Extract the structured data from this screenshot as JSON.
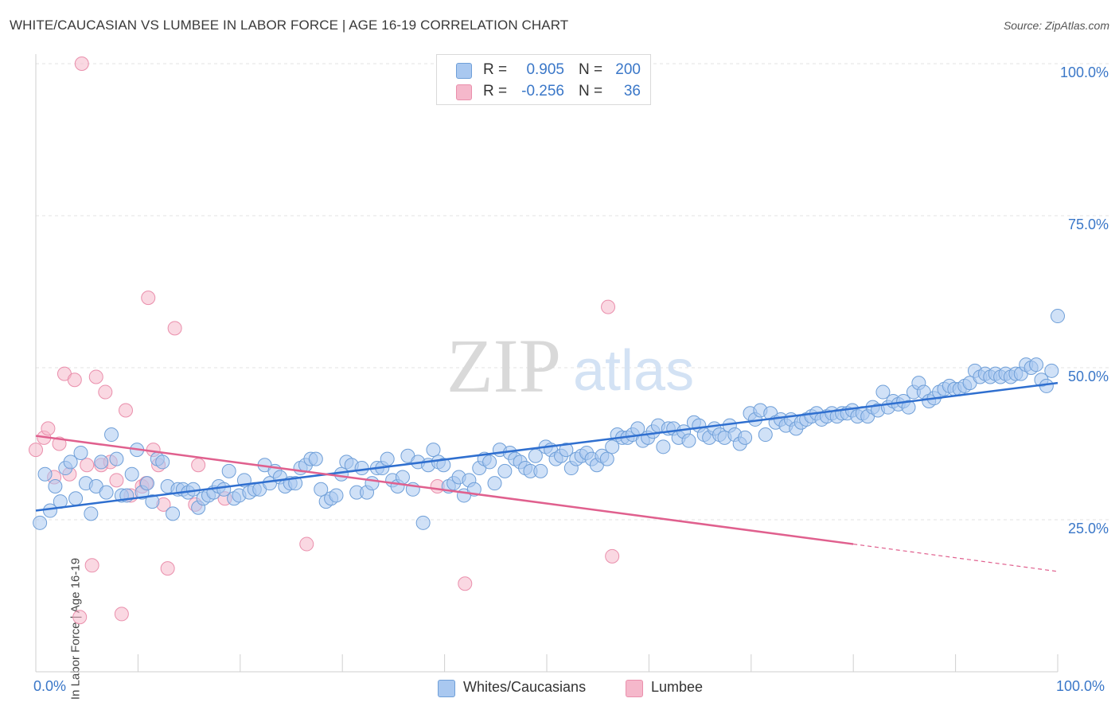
{
  "title": "WHITE/CAUCASIAN VS LUMBEE IN LABOR FORCE | AGE 16-19 CORRELATION CHART",
  "source": "Source: ZipAtlas.com",
  "watermark": {
    "zip": "ZIP",
    "atlas": "atlas"
  },
  "legend_top": [
    {
      "r_label": "R = ",
      "r_value": "0.905",
      "n_label": "N = ",
      "n_value": "200",
      "color": "#a9c8f0"
    },
    {
      "r_label": "R = ",
      "r_value": "-0.256",
      "n_label": "N = ",
      "n_value": "36",
      "color": "#f5b8cb"
    }
  ],
  "legend_bottom": [
    {
      "label": "Whites/Caucasians",
      "color": "#a9c8f0"
    },
    {
      "label": "Lumbee",
      "color": "#f5b8cb"
    }
  ],
  "x_tick_labels": {
    "left": "0.0%",
    "right": "100.0%"
  },
  "chart_data": {
    "type": "scatter",
    "title": "WHITE/CAUCASIAN VS LUMBEE IN LABOR FORCE | AGE 16-19 CORRELATION CHART",
    "xlabel": "",
    "ylabel": "In Labor Force | Age 16-19",
    "xlim": [
      0,
      100
    ],
    "ylim": [
      0,
      102
    ],
    "y_ticks": [
      {
        "value": 25,
        "label": "25.0%"
      },
      {
        "value": 50,
        "label": "50.0%"
      },
      {
        "value": 75,
        "label": "75.0%"
      },
      {
        "value": 100,
        "label": "100.0%"
      }
    ],
    "grid": true,
    "legend_position": "top-center",
    "colors": {
      "white_fill": "#a9c8f0",
      "white_stroke": "#6f9fd8",
      "white_line": "#2f6fcf",
      "lumbee_fill": "#f5b8cb",
      "lumbee_stroke": "#ea8fac",
      "lumbee_line": "#e0608e"
    },
    "series": [
      {
        "name": "Whites/Caucasians",
        "trend": {
          "x0": 0,
          "y0": 26.5,
          "x1": 100,
          "y1": 47.5
        },
        "points": [
          [
            0.4,
            24.5
          ],
          [
            0.9,
            32.5
          ],
          [
            1.4,
            26.5
          ],
          [
            1.9,
            30.5
          ],
          [
            2.4,
            28
          ],
          [
            2.9,
            33.5
          ],
          [
            3.4,
            34.5
          ],
          [
            3.9,
            28.5
          ],
          [
            4.4,
            36
          ],
          [
            4.9,
            31
          ],
          [
            5.4,
            26
          ],
          [
            5.9,
            30.5
          ],
          [
            6.4,
            34.5
          ],
          [
            6.9,
            29.5
          ],
          [
            7.4,
            39
          ],
          [
            7.9,
            35
          ],
          [
            8.4,
            29
          ],
          [
            8.9,
            29
          ],
          [
            9.4,
            32.5
          ],
          [
            9.9,
            36.5
          ],
          [
            10.4,
            29.5
          ],
          [
            10.9,
            31
          ],
          [
            11.4,
            28
          ],
          [
            11.9,
            35
          ],
          [
            12.4,
            34.5
          ],
          [
            12.9,
            30.5
          ],
          [
            13.4,
            26
          ],
          [
            13.9,
            30
          ],
          [
            14.4,
            30
          ],
          [
            14.9,
            29.5
          ],
          [
            15.4,
            30
          ],
          [
            15.9,
            27
          ],
          [
            16.4,
            28.5
          ],
          [
            16.9,
            29
          ],
          [
            17.4,
            29.5
          ],
          [
            17.9,
            30.5
          ],
          [
            18.4,
            30
          ],
          [
            18.9,
            33
          ],
          [
            19.4,
            28.5
          ],
          [
            19.9,
            29
          ],
          [
            20.4,
            31.5
          ],
          [
            20.9,
            29.5
          ],
          [
            21.4,
            30
          ],
          [
            21.9,
            30
          ],
          [
            22.4,
            34
          ],
          [
            22.9,
            31
          ],
          [
            23.4,
            33
          ],
          [
            23.9,
            32
          ],
          [
            24.4,
            30.5
          ],
          [
            24.9,
            31
          ],
          [
            25.4,
            31
          ],
          [
            25.9,
            33.5
          ],
          [
            26.4,
            34
          ],
          [
            26.9,
            35
          ],
          [
            27.4,
            35
          ],
          [
            27.9,
            30
          ],
          [
            28.4,
            28
          ],
          [
            28.9,
            28.5
          ],
          [
            29.4,
            29
          ],
          [
            29.9,
            32.5
          ],
          [
            30.4,
            34.5
          ],
          [
            30.9,
            34
          ],
          [
            31.4,
            29.5
          ],
          [
            31.9,
            33.5
          ],
          [
            32.4,
            29.5
          ],
          [
            32.9,
            31
          ],
          [
            33.4,
            33.5
          ],
          [
            33.9,
            33.5
          ],
          [
            34.4,
            35
          ],
          [
            34.9,
            31.5
          ],
          [
            35.4,
            30.5
          ],
          [
            35.9,
            32
          ],
          [
            36.4,
            35.5
          ],
          [
            36.9,
            30
          ],
          [
            37.4,
            34.5
          ],
          [
            37.9,
            24.5
          ],
          [
            38.4,
            34
          ],
          [
            38.9,
            36.5
          ],
          [
            39.4,
            34.5
          ],
          [
            39.9,
            34
          ],
          [
            40.4,
            30.5
          ],
          [
            40.9,
            31
          ],
          [
            41.4,
            32
          ],
          [
            41.9,
            29
          ],
          [
            42.4,
            31.5
          ],
          [
            42.9,
            30
          ],
          [
            43.4,
            33.5
          ],
          [
            43.9,
            35
          ],
          [
            44.4,
            34.5
          ],
          [
            44.9,
            31
          ],
          [
            45.4,
            36.5
          ],
          [
            45.9,
            33
          ],
          [
            46.4,
            36
          ],
          [
            46.9,
            35
          ],
          [
            47.4,
            34.5
          ],
          [
            47.9,
            33.5
          ],
          [
            48.4,
            33
          ],
          [
            48.9,
            35.5
          ],
          [
            49.4,
            33
          ],
          [
            49.9,
            37
          ],
          [
            50.4,
            36.5
          ],
          [
            50.9,
            35
          ],
          [
            51.4,
            35.5
          ],
          [
            51.9,
            36.5
          ],
          [
            52.4,
            33.5
          ],
          [
            52.9,
            35
          ],
          [
            53.4,
            35.5
          ],
          [
            53.9,
            36
          ],
          [
            54.4,
            35
          ],
          [
            54.9,
            34
          ],
          [
            55.4,
            35.5
          ],
          [
            55.9,
            35
          ],
          [
            56.4,
            37
          ],
          [
            56.9,
            39
          ],
          [
            57.4,
            38.5
          ],
          [
            57.9,
            38.5
          ],
          [
            58.4,
            39
          ],
          [
            58.9,
            40
          ],
          [
            59.4,
            38
          ],
          [
            59.9,
            38.5
          ],
          [
            60.4,
            39.5
          ],
          [
            60.9,
            40.5
          ],
          [
            61.4,
            37
          ],
          [
            61.9,
            40
          ],
          [
            62.4,
            40
          ],
          [
            62.9,
            38.5
          ],
          [
            63.4,
            39.5
          ],
          [
            63.9,
            38
          ],
          [
            64.4,
            41
          ],
          [
            64.9,
            40.5
          ],
          [
            65.4,
            39
          ],
          [
            65.9,
            38.5
          ],
          [
            66.4,
            40
          ],
          [
            66.9,
            39
          ],
          [
            67.4,
            38.5
          ],
          [
            67.9,
            40.5
          ],
          [
            68.4,
            39
          ],
          [
            68.9,
            37.5
          ],
          [
            69.4,
            38.5
          ],
          [
            69.9,
            42.5
          ],
          [
            70.4,
            41.5
          ],
          [
            70.9,
            43
          ],
          [
            71.4,
            39
          ],
          [
            71.9,
            42.5
          ],
          [
            72.4,
            41
          ],
          [
            72.9,
            41.5
          ],
          [
            73.4,
            40.5
          ],
          [
            73.9,
            41.5
          ],
          [
            74.4,
            40
          ],
          [
            74.9,
            41
          ],
          [
            75.4,
            41.5
          ],
          [
            75.9,
            42
          ],
          [
            76.4,
            42.5
          ],
          [
            76.9,
            41.5
          ],
          [
            77.4,
            42
          ],
          [
            77.9,
            42.5
          ],
          [
            78.4,
            42
          ],
          [
            78.9,
            42.5
          ],
          [
            79.4,
            42.5
          ],
          [
            79.9,
            43
          ],
          [
            80.4,
            42
          ],
          [
            80.9,
            42.5
          ],
          [
            81.4,
            42
          ],
          [
            81.9,
            43.5
          ],
          [
            82.4,
            43
          ],
          [
            82.9,
            46
          ],
          [
            83.4,
            43.5
          ],
          [
            83.9,
            44.5
          ],
          [
            84.4,
            44
          ],
          [
            84.9,
            44.5
          ],
          [
            85.4,
            43.5
          ],
          [
            85.9,
            46
          ],
          [
            86.4,
            47.5
          ],
          [
            86.9,
            46
          ],
          [
            87.4,
            44.5
          ],
          [
            87.9,
            45
          ],
          [
            88.4,
            46
          ],
          [
            88.9,
            46.5
          ],
          [
            89.4,
            47
          ],
          [
            89.9,
            46.5
          ],
          [
            90.4,
            46.5
          ],
          [
            90.9,
            47
          ],
          [
            91.4,
            47.5
          ],
          [
            91.9,
            49.5
          ],
          [
            92.4,
            48.5
          ],
          [
            92.9,
            49
          ],
          [
            93.4,
            48.5
          ],
          [
            93.9,
            49
          ],
          [
            94.4,
            48.5
          ],
          [
            94.9,
            49
          ],
          [
            95.4,
            48.5
          ],
          [
            95.9,
            49
          ],
          [
            96.4,
            49
          ],
          [
            96.9,
            50.5
          ],
          [
            97.4,
            50
          ],
          [
            97.9,
            50.5
          ],
          [
            98.4,
            48
          ],
          [
            98.9,
            47
          ],
          [
            99.4,
            49.5
          ],
          [
            100,
            58.5
          ]
        ]
      },
      {
        "name": "Lumbee",
        "trend": {
          "x0": 0,
          "y0": 38.8,
          "x1": 80,
          "y1": 21,
          "dash_x1": 100,
          "dash_y1": 16.5
        },
        "points": [
          [
            0,
            36.5
          ],
          [
            0.8,
            38.5
          ],
          [
            1.2,
            40
          ],
          [
            1.8,
            32
          ],
          [
            2.3,
            37.5
          ],
          [
            2.8,
            49
          ],
          [
            3.3,
            32.5
          ],
          [
            3.8,
            48
          ],
          [
            4.3,
            9
          ],
          [
            4.5,
            100
          ],
          [
            5.0,
            34
          ],
          [
            5.5,
            17.5
          ],
          [
            5.9,
            48.5
          ],
          [
            6.4,
            34
          ],
          [
            6.8,
            46
          ],
          [
            7.3,
            34.5
          ],
          [
            7.9,
            31.5
          ],
          [
            8.4,
            9.5
          ],
          [
            8.8,
            43
          ],
          [
            9.3,
            29
          ],
          [
            10.4,
            30.5
          ],
          [
            10.8,
            31
          ],
          [
            11.0,
            61.5
          ],
          [
            11.5,
            36.5
          ],
          [
            12.0,
            34
          ],
          [
            12.5,
            27.5
          ],
          [
            12.9,
            17
          ],
          [
            13.6,
            56.5
          ],
          [
            15.6,
            27.5
          ],
          [
            15.9,
            34
          ],
          [
            18.5,
            28.5
          ],
          [
            26.5,
            21
          ],
          [
            39.3,
            30.5
          ],
          [
            42.0,
            14.5
          ],
          [
            56.0,
            60
          ],
          [
            56.4,
            19
          ]
        ]
      }
    ]
  }
}
